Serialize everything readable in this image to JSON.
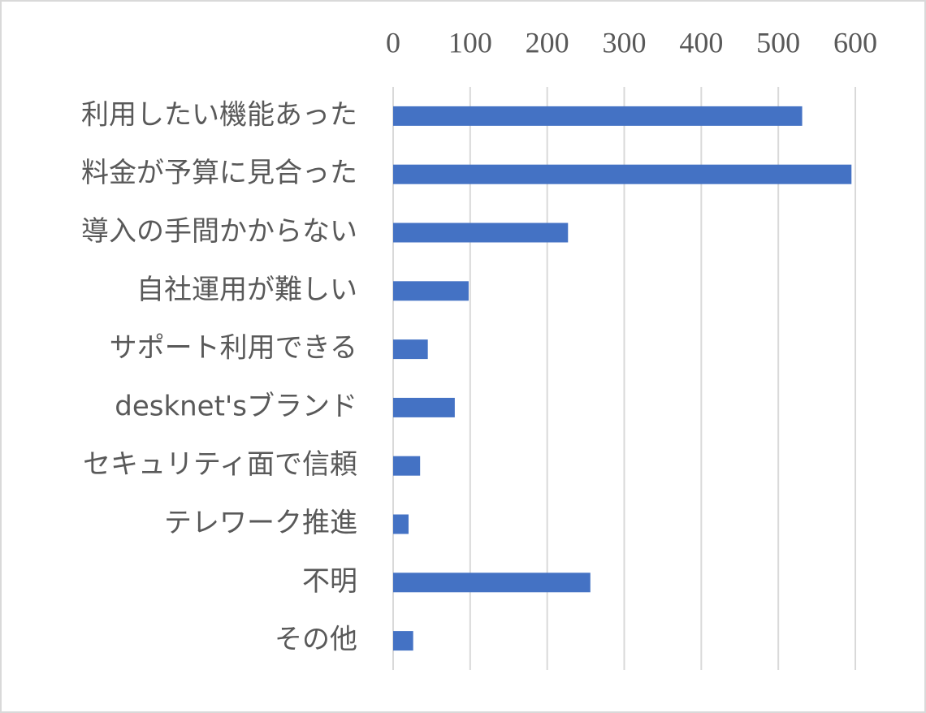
{
  "chart_data": {
    "type": "barh",
    "categories": [
      "利用したい機能あった",
      "料金が予算に見合った",
      "導入の手間かからない",
      "自社運用が難しい",
      "サポート利用できる",
      "desknet'sブランド",
      "セキュリティ面で信頼",
      "テレワーク推進",
      "不明",
      "その他"
    ],
    "values": [
      531,
      595,
      227,
      98,
      45,
      80,
      35,
      20,
      256,
      26
    ],
    "color": "#4472c4",
    "xlim": [
      0,
      600
    ],
    "xticks": [
      0,
      100,
      200,
      300,
      400,
      500,
      600
    ],
    "grid": true
  }
}
